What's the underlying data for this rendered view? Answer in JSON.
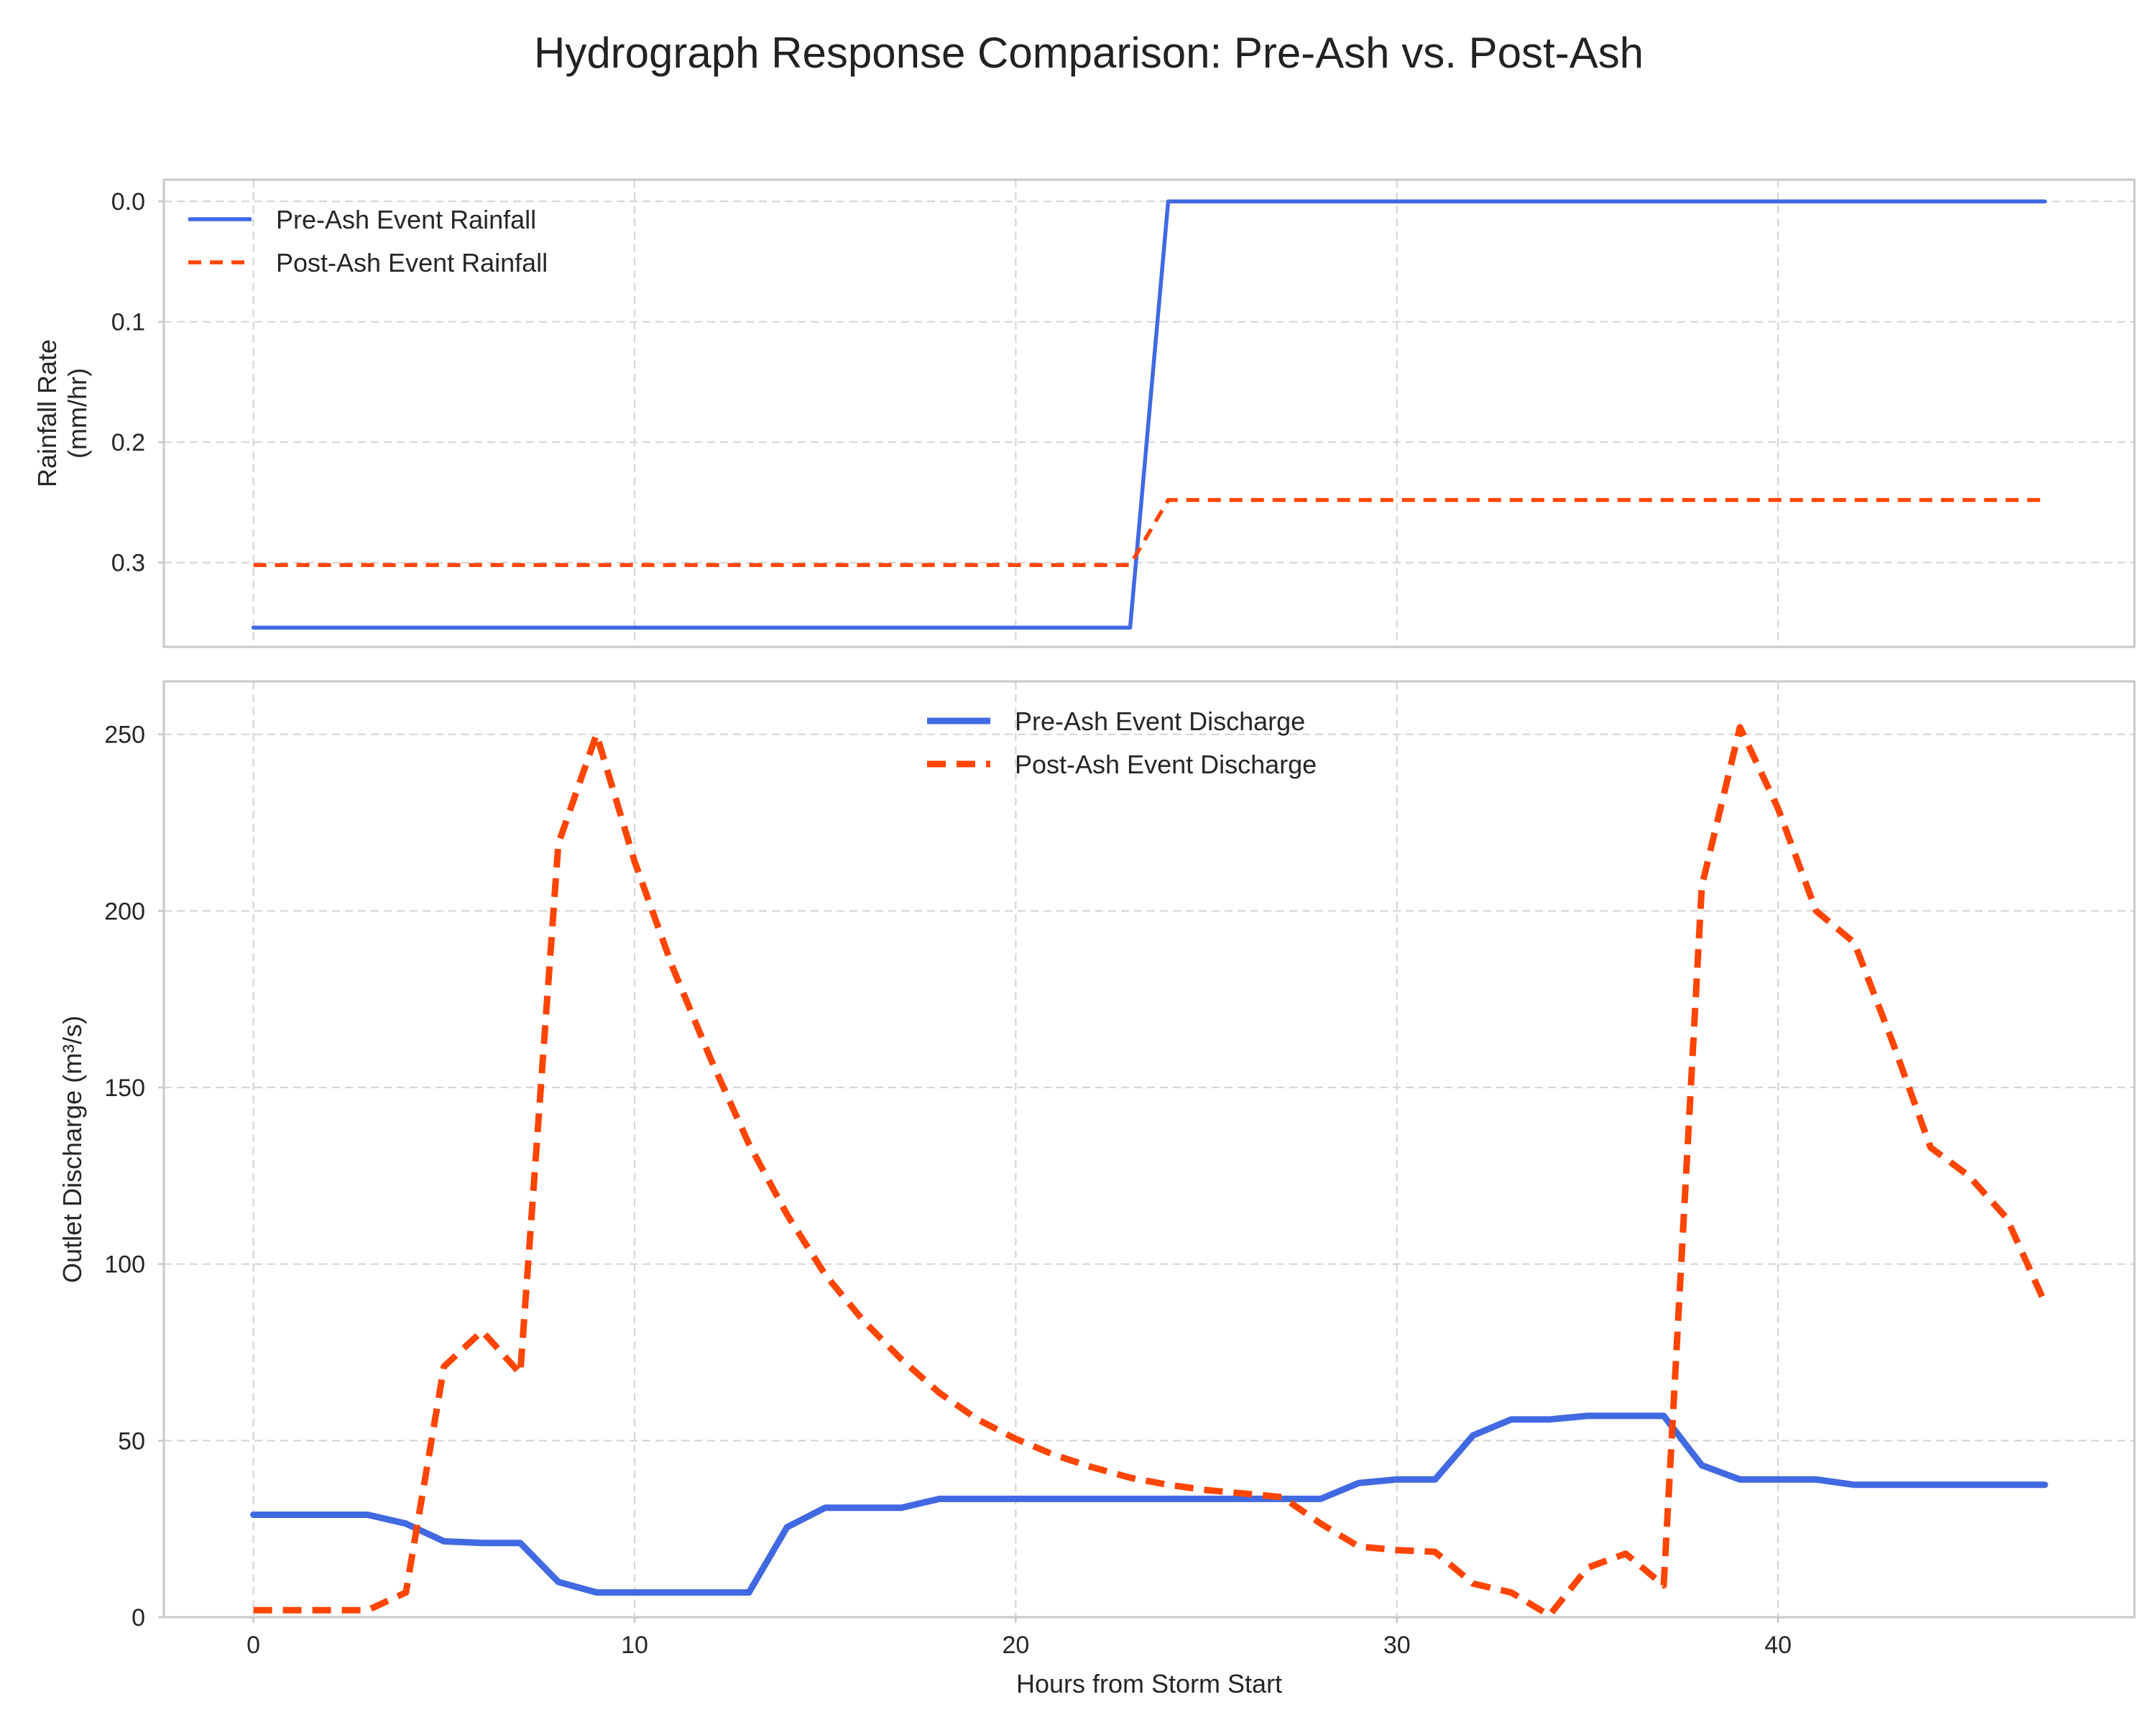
{
  "figure_title": "Hydrograph Response Comparison: Pre-Ash vs. Post-Ash",
  "colors": {
    "pre": "#4169e1",
    "post": "#ff4500"
  },
  "chart_data": [
    {
      "type": "line",
      "panel": "top",
      "ylabel": [
        "Rainfall Rate",
        "(mm/hr)"
      ],
      "xlabel": "",
      "xlim": [
        -2.35,
        49.35
      ],
      "ylim": [
        0.37,
        -0.018
      ],
      "y_inverted": true,
      "xticks": [
        0,
        10,
        20,
        30,
        40
      ],
      "yticks": [
        0.0,
        0.1,
        0.2,
        0.3
      ],
      "ytick_labels": [
        "0.0",
        "0.1",
        "0.2",
        "0.3"
      ],
      "grid": true,
      "legend_position": "upper left",
      "x": [
        0,
        23,
        24,
        47
      ],
      "series": [
        {
          "name": "Pre-Ash Event Rainfall",
          "values": [
            0.354,
            0.354,
            0.0,
            0.0
          ],
          "style": "solid"
        },
        {
          "name": "Post-Ash Event Rainfall",
          "values": [
            0.302,
            0.302,
            0.248,
            0.248
          ],
          "style": "dashed"
        }
      ]
    },
    {
      "type": "line",
      "panel": "bottom",
      "ylabel": "Outlet Discharge (m³/s)",
      "xlabel": "Hours from Storm Start",
      "xlim": [
        -2.35,
        49.35
      ],
      "ylim": [
        0,
        265
      ],
      "xticks": [
        0,
        10,
        20,
        30,
        40
      ],
      "xtick_labels": [
        "0",
        "10",
        "20",
        "30",
        "40"
      ],
      "yticks": [
        0,
        50,
        100,
        150,
        200,
        250
      ],
      "ytick_labels": [
        "0",
        "50",
        "100",
        "150",
        "200",
        "250"
      ],
      "grid": true,
      "legend_position": "upper center",
      "x": [
        0,
        1,
        2,
        3,
        4,
        5,
        6,
        7,
        8,
        9,
        10,
        11,
        12,
        13,
        14,
        15,
        16,
        17,
        18,
        19,
        20,
        21,
        22,
        23,
        24,
        25,
        26,
        27,
        28,
        29,
        30,
        31,
        32,
        33,
        34,
        35,
        36,
        37,
        38,
        39,
        40,
        41,
        42,
        43,
        44,
        45,
        46,
        47
      ],
      "series": [
        {
          "name": "Pre-Ash Event Discharge",
          "style": "solid",
          "values": [
            29,
            29,
            29,
            29,
            26.5,
            21.5,
            21,
            21,
            10,
            7,
            7,
            7,
            7,
            7,
            25.5,
            31,
            31,
            31,
            33.5,
            33.5,
            33.5,
            33.5,
            33.5,
            33.5,
            33.5,
            33.5,
            33.5,
            33.5,
            33.5,
            38,
            39,
            39,
            51.5,
            56,
            56,
            57,
            57,
            57,
            43,
            39,
            39,
            39,
            37.5,
            37.5,
            37.5,
            37.5,
            37.5,
            37.5
          ]
        },
        {
          "name": "Post-Ash Event Discharge",
          "style": "dashed",
          "values": [
            2,
            2,
            2,
            2,
            7,
            71,
            81,
            69,
            219,
            250,
            214,
            184,
            158,
            134,
            114,
            97,
            84,
            73,
            63.5,
            56,
            50.5,
            46,
            42.5,
            39.5,
            37.5,
            36,
            35,
            34,
            26.5,
            20,
            19,
            18.5,
            9.5,
            7,
            0.5,
            14,
            18,
            9,
            207,
            252,
            229,
            200,
            191,
            163,
            133,
            125,
            113,
            89
          ]
        }
      ]
    }
  ]
}
